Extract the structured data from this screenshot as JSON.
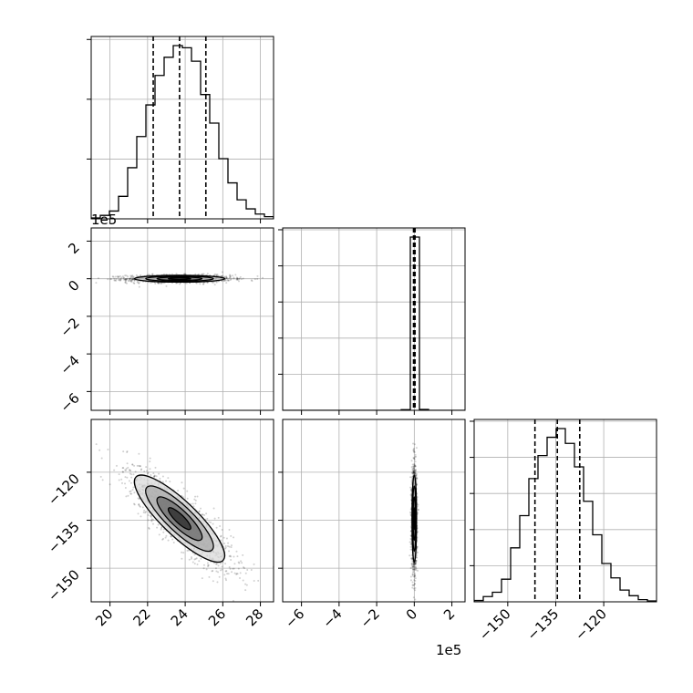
{
  "chart_data": {
    "type": "corner",
    "title": "",
    "grid": true,
    "parameters": [
      {
        "label": "",
        "range": [
          19,
          28.7
        ],
        "ticks": [
          20,
          22,
          24,
          26,
          28
        ],
        "tick_labels": [
          "20",
          "22",
          "24",
          "26",
          "28"
        ]
      },
      {
        "label": "",
        "range": [
          -7,
          2.7
        ],
        "ticks": [
          -6,
          -4,
          -2,
          0,
          2
        ],
        "tick_labels": [
          "−6",
          "−4",
          "−2",
          "0",
          "2"
        ],
        "offset_text": "1e5"
      },
      {
        "label": "",
        "range": [
          -160.5,
          -103.5
        ],
        "ticks": [
          -150,
          -135,
          -120
        ],
        "tick_labels": [
          "−150",
          "−135",
          "−120"
        ]
      }
    ],
    "marginals": [
      {
        "param": 0,
        "bins": [
          19.0,
          19.485,
          19.97,
          20.455,
          20.94,
          21.425,
          21.91,
          22.395,
          22.88,
          23.365,
          23.85,
          24.335,
          24.82,
          25.305,
          25.79,
          26.275,
          26.76,
          27.245,
          27.73,
          28.215,
          28.7
        ],
        "counts": [
          2,
          8,
          18,
          52,
          118,
          190,
          263,
          331,
          373,
          400,
          395,
          364,
          287,
          221,
          139,
          83,
          44,
          23,
          11,
          5
        ],
        "quantiles": [
          22.3,
          23.7,
          25.1
        ]
      },
      {
        "param": 1,
        "bins": [
          -7.0,
          -6.515,
          -6.03,
          -5.545,
          -5.06,
          -4.575,
          -4.09,
          -3.605,
          -3.12,
          -2.635,
          -2.15,
          -1.665,
          -1.18,
          -0.695,
          -0.21,
          0.275,
          0.76,
          1.245,
          1.73,
          2.215,
          2.7
        ],
        "counts": [
          0,
          0,
          0,
          0,
          0,
          0,
          0,
          0,
          0,
          0,
          0,
          0,
          0,
          12,
          3000,
          15,
          0,
          0,
          0,
          0
        ],
        "quantiles": [
          -0.04,
          0.0,
          0.04
        ]
      },
      {
        "param": 2,
        "bins": [
          -160.5,
          -157.65,
          -154.8,
          -151.95,
          -149.1,
          -146.25,
          -143.4,
          -140.55,
          -137.7,
          -134.85,
          -132.0,
          -129.15,
          -126.3,
          -123.45,
          -120.6,
          -117.75,
          -114.9,
          -112.05,
          -109.2,
          -106.35,
          -103.5
        ],
        "counts": [
          3,
          12,
          22,
          52,
          124,
          198,
          283,
          336,
          378,
          398,
          364,
          310,
          231,
          154,
          88,
          55,
          27,
          14,
          5,
          2
        ],
        "quantiles": [
          -141.5,
          -134.5,
          -127.5
        ]
      }
    ],
    "joint": [
      {
        "x_param": 0,
        "y_param": 1,
        "center": [
          23.7,
          0.0
        ],
        "spread": [
          1.2,
          0.09
        ],
        "corr": 0.0
      },
      {
        "x_param": 0,
        "y_param": 2,
        "center": [
          23.7,
          -134.5
        ],
        "spread": [
          1.2,
          6.8
        ],
        "corr": -0.85
      },
      {
        "x_param": 1,
        "y_param": 2,
        "center": [
          0.0,
          -134.5
        ],
        "spread": [
          0.06,
          6.8
        ],
        "corr": 0.0
      }
    ]
  }
}
